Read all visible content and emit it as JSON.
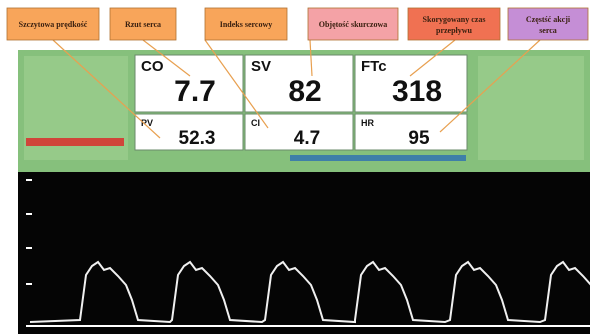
{
  "callouts": [
    "Szczytowa prędkość",
    "Rzut serca",
    "Indeks sercowy",
    "Objętość skurczowa",
    "Skorygowany czas przepływu",
    "Częstść akcji serca"
  ],
  "tiles": [
    {
      "label": "CO",
      "value": "7.7"
    },
    {
      "label": "SV",
      "value": "82"
    },
    {
      "label": "FTc",
      "value": "318"
    },
    {
      "label": "PV",
      "value": "52.3"
    },
    {
      "label": "CI",
      "value": "4.7"
    },
    {
      "label": "HR",
      "value": "95"
    }
  ]
}
